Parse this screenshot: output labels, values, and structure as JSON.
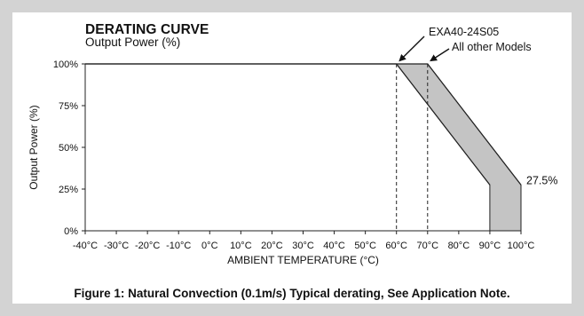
{
  "chart_data": {
    "type": "area",
    "title": "DERATING CURVE",
    "subtitle": "Output Power (%)",
    "xlabel": "AMBIENT TEMPERATURE (°C)",
    "ylabel": "Output Power (%)",
    "x_ticks": [
      -40,
      -30,
      -20,
      -10,
      0,
      10,
      20,
      30,
      40,
      50,
      60,
      70,
      80,
      90,
      100
    ],
    "x_tick_labels": [
      "-40°C",
      "-30°C",
      "-20°C",
      "-10°C",
      "0°C",
      "10°C",
      "20°C",
      "30°C",
      "40°C",
      "50°C",
      "60°C",
      "70°C",
      "80°C",
      "90°C",
      "100°C"
    ],
    "y_ticks": [
      0,
      25,
      50,
      75,
      100
    ],
    "y_tick_labels": [
      "0%",
      "25%",
      "50%",
      "75%",
      "100%"
    ],
    "xlim": [
      -40,
      100
    ],
    "ylim": [
      0,
      100
    ],
    "grid": false,
    "series": [
      {
        "name": "EXA40-24S05",
        "x": [
          -40,
          60,
          90
        ],
        "y": [
          100,
          100,
          27.5
        ]
      },
      {
        "name": "All other Models",
        "x": [
          -40,
          70,
          100
        ],
        "y": [
          100,
          100,
          27.5
        ]
      }
    ],
    "annotations": [
      "EXA40-24S05",
      "All other Models",
      "27.5%"
    ],
    "caption": "Figure 1: Natural Convection (0.1m/s) Typical derating, See Application Note."
  }
}
